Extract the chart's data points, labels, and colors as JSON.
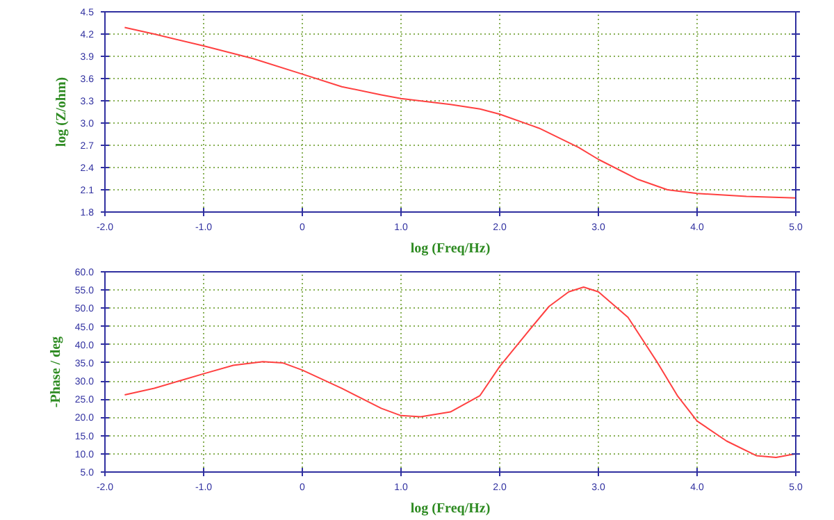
{
  "chart_data": [
    {
      "type": "line",
      "xlabel": "log (Freq/Hz)",
      "ylabel": "log (Z/ohm)",
      "xlim": [
        -2.0,
        5.0
      ],
      "ylim": [
        1.8,
        4.5
      ],
      "xticks": [
        {
          "value": -2,
          "label": "-2.0"
        },
        {
          "value": -1,
          "label": "-1.0"
        },
        0,
        {
          "value": 1,
          "label": "1.0"
        },
        {
          "value": 2,
          "label": "2.0"
        },
        {
          "value": 3,
          "label": "3.0"
        },
        {
          "value": 4,
          "label": "4.0"
        },
        {
          "value": 5,
          "label": "5.0"
        }
      ],
      "yticks": [
        1.8,
        2.1,
        2.4,
        2.7,
        {
          "value": 3,
          "label": "3.0"
        },
        3.3,
        3.6,
        3.9,
        4.2,
        4.5
      ],
      "grid": true,
      "marker": "none",
      "line_style": "solid",
      "series": [
        {
          "color": "#ff4040",
          "x": [
            -1.8,
            -1.5,
            -1.0,
            -0.5,
            0,
            0.4,
            0.8,
            1.0,
            1.5,
            1.8,
            2.0,
            2.4,
            2.8,
            3.0,
            3.4,
            3.7,
            4.0,
            4.5,
            5.0
          ],
          "values": [
            4.29,
            4.2,
            4.04,
            3.87,
            3.66,
            3.49,
            3.38,
            3.33,
            3.25,
            3.19,
            3.12,
            2.93,
            2.67,
            2.51,
            2.24,
            2.1,
            2.05,
            2.01,
            1.99
          ]
        }
      ]
    },
    {
      "type": "line",
      "xlabel": "log (Freq/Hz)",
      "ylabel": "-Phase / deg",
      "xlim": [
        -2.0,
        5.0
      ],
      "ylim": [
        5.0,
        60.0
      ],
      "xticks": [
        {
          "value": -2,
          "label": "-2.0"
        },
        {
          "value": -1,
          "label": "-1.0"
        },
        0,
        {
          "value": 1,
          "label": "1.0"
        },
        {
          "value": 2,
          "label": "2.0"
        },
        {
          "value": 3,
          "label": "3.0"
        },
        {
          "value": 4,
          "label": "4.0"
        },
        {
          "value": 5,
          "label": "5.0"
        }
      ],
      "yticks": [
        {
          "value": 5,
          "label": "5.0"
        },
        {
          "value": 10,
          "label": "10.0"
        },
        {
          "value": 15,
          "label": "15.0"
        },
        {
          "value": 20,
          "label": "20.0"
        },
        {
          "value": 25,
          "label": "25.0"
        },
        {
          "value": 30,
          "label": "30.0"
        },
        {
          "value": 35,
          "label": "35.0"
        },
        {
          "value": 40,
          "label": "40.0"
        },
        {
          "value": 45,
          "label": "45.0"
        },
        {
          "value": 50,
          "label": "50.0"
        },
        {
          "value": 55,
          "label": "55.0"
        },
        {
          "value": 60,
          "label": "60.0"
        }
      ],
      "grid": true,
      "marker": "none",
      "line_style": "solid",
      "series": [
        {
          "color": "#ff4040",
          "x": [
            -1.8,
            -1.5,
            -1.0,
            -0.7,
            -0.4,
            -0.2,
            0,
            0.4,
            0.8,
            1.0,
            1.2,
            1.5,
            1.8,
            2.0,
            2.3,
            2.5,
            2.7,
            2.85,
            3.0,
            3.3,
            3.6,
            3.8,
            4.0,
            4.3,
            4.6,
            4.8,
            5.0
          ],
          "values": [
            26.2,
            28,
            32,
            34.3,
            35.3,
            35.0,
            33,
            28,
            22.5,
            20.5,
            20.2,
            21.5,
            26,
            34,
            44,
            50.5,
            54.5,
            55.8,
            54.5,
            47.5,
            35,
            26,
            19,
            13.5,
            9.5,
            9,
            10
          ]
        }
      ]
    }
  ]
}
